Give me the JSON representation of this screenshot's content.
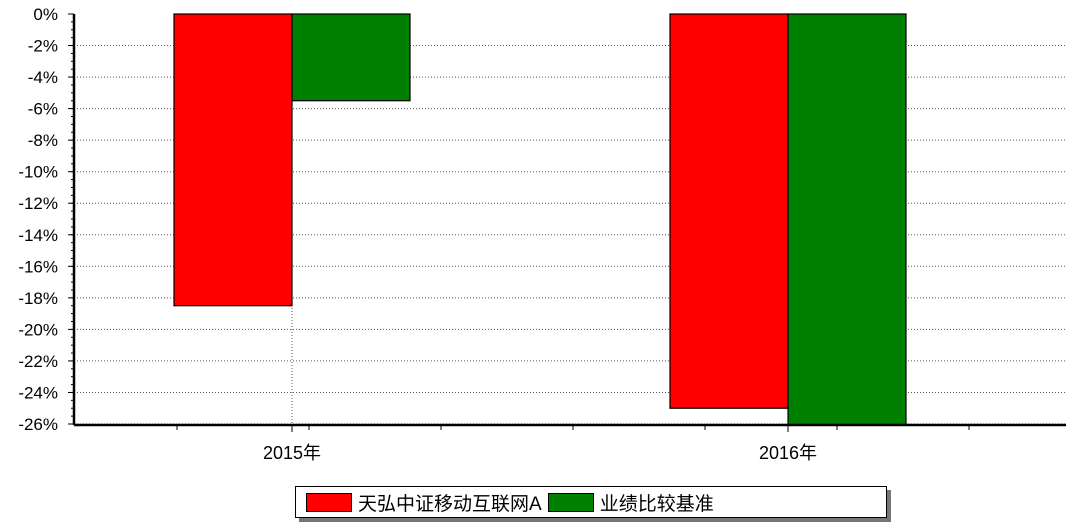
{
  "chart_data": {
    "type": "bar",
    "categories": [
      "2015年",
      "2016年"
    ],
    "series": [
      {
        "name": "天弘中证移动互联网A",
        "color": "#ff0000",
        "values": [
          -18.5,
          -25.0
        ]
      },
      {
        "name": "业绩比较基准",
        "color": "#008000",
        "values": [
          -5.5,
          -26.4
        ]
      }
    ],
    "ylim": [
      -26,
      0
    ],
    "yticks": [
      "0%",
      "-2%",
      "-4%",
      "-6%",
      "-8%",
      "-10%",
      "-12%",
      "-14%",
      "-16%",
      "-18%",
      "-20%",
      "-22%",
      "-24%",
      "-26%"
    ],
    "grid": true,
    "legend": "bottom-center"
  }
}
